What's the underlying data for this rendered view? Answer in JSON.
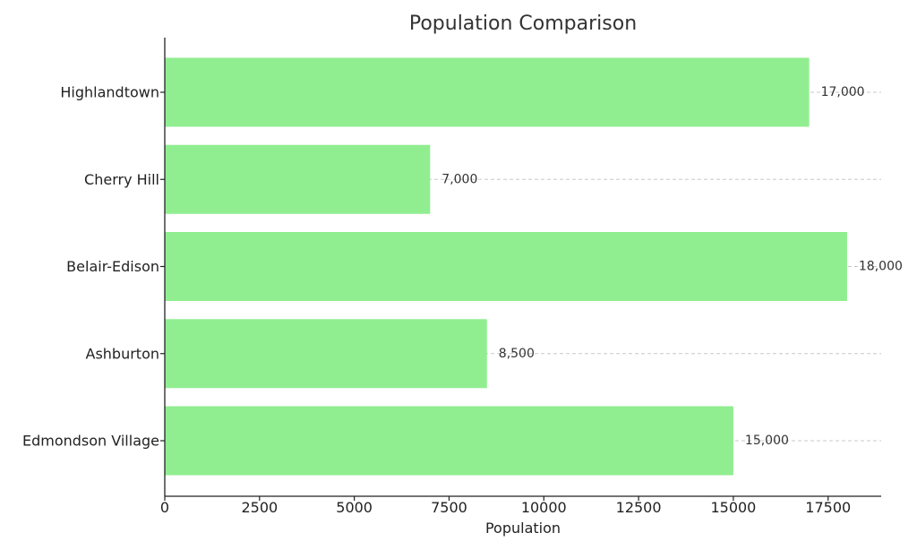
{
  "chart_data": {
    "type": "bar",
    "orientation": "horizontal",
    "title": "Population Comparison",
    "xlabel": "Population",
    "ylabel": "",
    "categories": [
      "Highlandtown",
      "Cherry Hill",
      "Belair-Edison",
      "Ashburton",
      "Edmondson Village"
    ],
    "values": [
      17000,
      7000,
      18000,
      8500,
      15000
    ],
    "value_labels": [
      "17,000",
      "7,000",
      "18,000",
      "8,500",
      "15,000"
    ],
    "xlim": [
      0,
      18900
    ],
    "xticks": [
      0,
      2500,
      5000,
      7500,
      10000,
      12500,
      15000,
      17500
    ],
    "grid": "horizontal-dashed",
    "legend": "none",
    "bar_color": "#90ee90"
  }
}
